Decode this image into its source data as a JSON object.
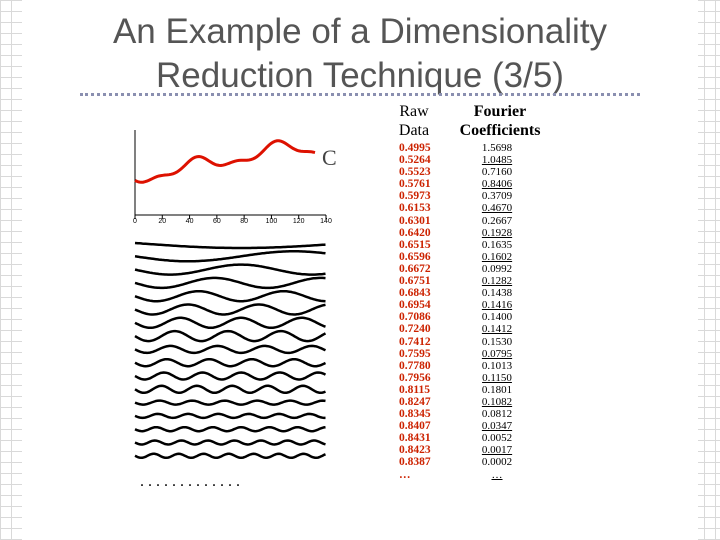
{
  "slide": {
    "title_line1": "An Example of a Dimensionality",
    "title_line2": "Reduction Technique (3/5)"
  },
  "chart": {
    "series_label": "C",
    "x_ticks": [
      "0",
      "20",
      "40",
      "60",
      "80",
      "100",
      "120",
      "140"
    ],
    "series_color": "#dd1100",
    "ellipsis": ". . . . . . . . . . . . ."
  },
  "raw_data": {
    "header_line1": "Raw",
    "header_line2": "Data",
    "values": [
      "0.4995",
      "0.5264",
      "0.5523",
      "0.5761",
      "0.5973",
      "0.6153",
      "0.6301",
      "0.6420",
      "0.6515",
      "0.6596",
      "0.6672",
      "0.6751",
      "0.6843",
      "0.6954",
      "0.7086",
      "0.7240",
      "0.7412",
      "0.7595",
      "0.7780",
      "0.7956",
      "0.8115",
      "0.8247",
      "0.8345",
      "0.8407",
      "0.8431",
      "0.8423",
      "0.8387",
      "…"
    ]
  },
  "fourier": {
    "header_line1": "Fourier",
    "header_line2": "Coefficients",
    "values": [
      "1.5698",
      "1.0485",
      "0.7160",
      "0.8406",
      "0.3709",
      "0.4670",
      "0.2667",
      "0.1928",
      "0.1635",
      "0.1602",
      "0.0992",
      "0.1282",
      "0.1438",
      "0.1416",
      "0.1400",
      "0.1412",
      "0.1530",
      "0.0795",
      "0.1013",
      "0.1150",
      "0.1801",
      "0.1082",
      "0.0812",
      "0.0347",
      "0.0052",
      "0.0017",
      "0.0002",
      "…"
    ]
  }
}
